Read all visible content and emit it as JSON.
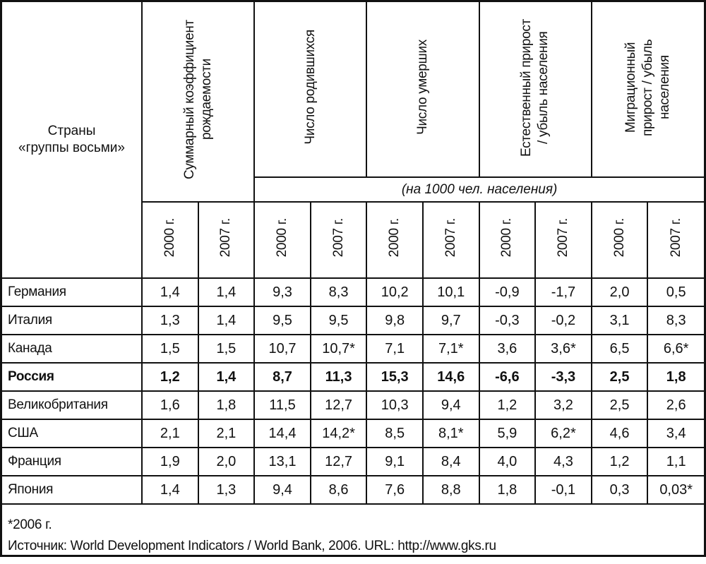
{
  "header": {
    "country_col": [
      "Страны",
      "«группы восьми»"
    ],
    "groups": [
      "Суммарный коэффициент рождаемости",
      "Число родившихся",
      "Число умерших",
      "Естественный прирост / убыль населения",
      "Миграционный прирост / убыль населения"
    ],
    "units": "(на 1000 чел. населения)",
    "years": [
      "2000 г.",
      "2007 г."
    ]
  },
  "rows": [
    {
      "country": "Германия",
      "bold": false,
      "values": [
        "1,4",
        "1,4",
        "9,3",
        "8,3",
        "10,2",
        "10,1",
        "-0,9",
        "-1,7",
        "2,0",
        "0,5"
      ]
    },
    {
      "country": "Италия",
      "bold": false,
      "values": [
        "1,3",
        "1,4",
        "9,5",
        "9,5",
        "9,8",
        "9,7",
        "-0,3",
        "-0,2",
        "3,1",
        "8,3"
      ]
    },
    {
      "country": "Канада",
      "bold": false,
      "values": [
        "1,5",
        "1,5",
        "10,7",
        "10,7*",
        "7,1",
        "7,1*",
        "3,6",
        "3,6*",
        "6,5",
        "6,6*"
      ]
    },
    {
      "country": "Россия",
      "bold": true,
      "values": [
        "1,2",
        "1,4",
        "8,7",
        "11,3",
        "15,3",
        "14,6",
        "-6,6",
        "-3,3",
        "2,5",
        "1,8"
      ]
    },
    {
      "country": "Великобритания",
      "bold": false,
      "values": [
        "1,6",
        "1,8",
        "11,5",
        "12,7",
        "10,3",
        "9,4",
        "1,2",
        "3,2",
        "2,5",
        "2,6"
      ]
    },
    {
      "country": "США",
      "bold": false,
      "values": [
        "2,1",
        "2,1",
        "14,4",
        "14,2*",
        "8,5",
        "8,1*",
        "5,9",
        "6,2*",
        "4,6",
        "3,4"
      ]
    },
    {
      "country": "Франция",
      "bold": false,
      "values": [
        "1,9",
        "2,0",
        "13,1",
        "12,7",
        "9,1",
        "8,4",
        "4,0",
        "4,3",
        "1,2",
        "1,1"
      ]
    },
    {
      "country": "Япония",
      "bold": false,
      "values": [
        "1,4",
        "1,3",
        "9,4",
        "8,6",
        "7,6",
        "8,8",
        "1,8",
        "-0,1",
        "0,3",
        "0,03*"
      ]
    }
  ],
  "footer": {
    "note": "*2006 г.",
    "source": "Источник: World Development Indicators / World Bank, 2006. URL: http://www.gks.ru"
  }
}
